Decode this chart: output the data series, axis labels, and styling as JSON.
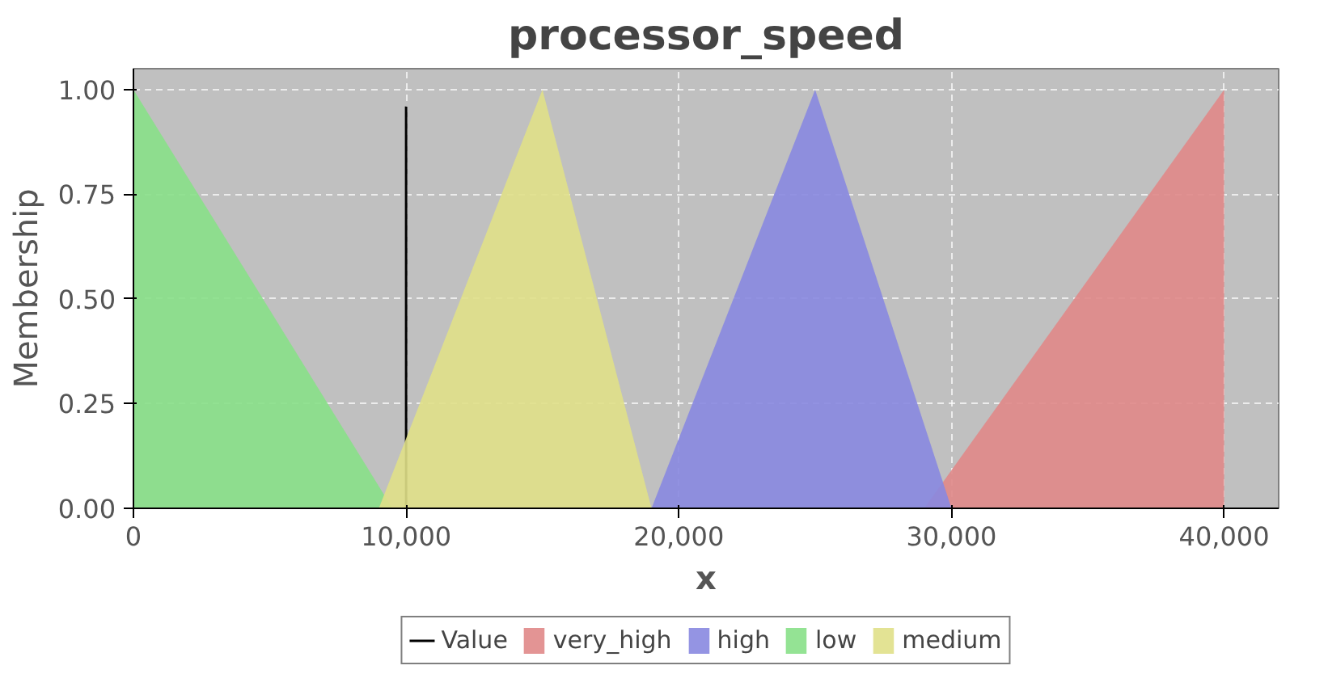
{
  "chart_data": {
    "type": "area",
    "title": "processor_speed",
    "xlabel": "x",
    "ylabel": "Membership",
    "xlim": [
      0,
      42000
    ],
    "ylim": [
      0,
      1.05
    ],
    "xticks": [
      {
        "value": 0,
        "label": "0"
      },
      {
        "value": 10000,
        "label": "10,000"
      },
      {
        "value": 20000,
        "label": "20,000"
      },
      {
        "value": 30000,
        "label": "30,000"
      },
      {
        "value": 40000,
        "label": "40,000"
      }
    ],
    "yticks": [
      {
        "value": 0,
        "label": "0.00"
      },
      {
        "value": 0.25,
        "label": "0.25"
      },
      {
        "value": 0.5,
        "label": "0.50"
      },
      {
        "value": 0.75,
        "label": "0.75"
      },
      {
        "value": 1,
        "label": "1.00"
      }
    ],
    "grid": true,
    "legend": "bottom",
    "series": [
      {
        "name": "Value",
        "type": "line",
        "color": "#000000",
        "x": [
          10000,
          10000
        ],
        "values": [
          0,
          0.96
        ]
      },
      {
        "name": "very_high",
        "color": "#e08888",
        "x": [
          29000,
          40000,
          40000
        ],
        "values": [
          0,
          1,
          0
        ]
      },
      {
        "name": "high",
        "color": "#8888e0",
        "x": [
          19000,
          25000,
          30000
        ],
        "values": [
          0,
          1,
          0
        ]
      },
      {
        "name": "low",
        "color": "#88e088",
        "x": [
          0,
          0,
          9500
        ],
        "values": [
          0,
          1,
          0
        ]
      },
      {
        "name": "medium",
        "color": "#e0e088",
        "x": [
          9000,
          15000,
          19000
        ],
        "values": [
          0,
          1,
          0
        ]
      }
    ]
  }
}
